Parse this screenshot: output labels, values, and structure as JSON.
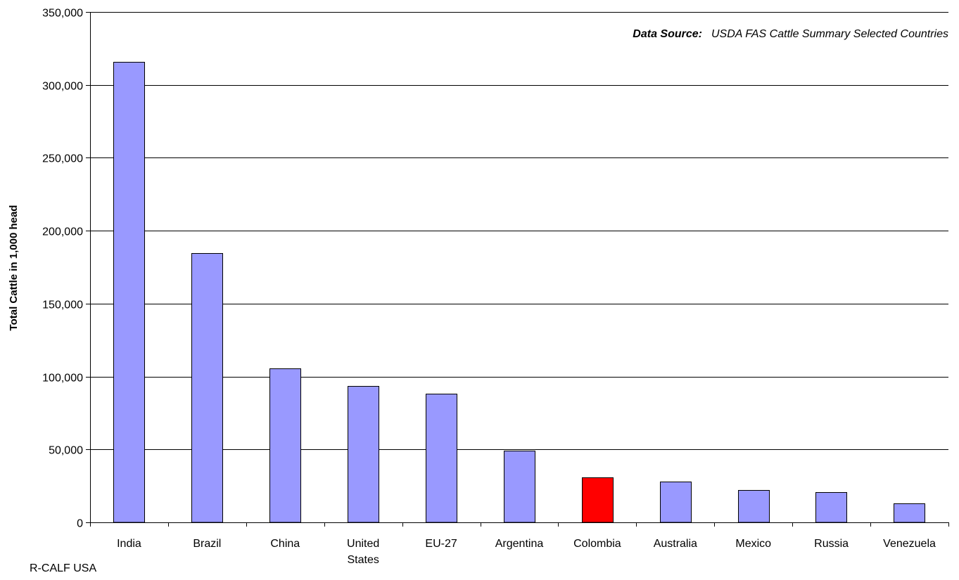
{
  "chart_data": {
    "type": "bar",
    "title": "",
    "annotation_label": "Data Source:",
    "annotation_text": "USDA FAS Cattle Summary Selected Countries",
    "xlabel": "",
    "ylabel": "Total Cattle in 1,000 head",
    "ylim": [
      0,
      350000
    ],
    "yticks": [
      0,
      50000,
      100000,
      150000,
      200000,
      250000,
      300000,
      350000
    ],
    "ytick_labels": [
      "0",
      "50,000",
      "100,000",
      "150,000",
      "200,000",
      "250,000",
      "300,000",
      "350,000"
    ],
    "grid": true,
    "categories": [
      [
        "India"
      ],
      [
        "Brazil"
      ],
      [
        "China"
      ],
      [
        "United",
        "States"
      ],
      [
        "EU-27"
      ],
      [
        "Argentina"
      ],
      [
        "Colombia"
      ],
      [
        "Australia"
      ],
      [
        "Mexico"
      ],
      [
        "Russia"
      ],
      [
        "Venezuela"
      ]
    ],
    "values": [
      316000,
      184500,
      105500,
      93500,
      88000,
      49000,
      31000,
      28000,
      22000,
      20500,
      13000
    ],
    "colors": {
      "default": "#9999ff",
      "highlight": "#ff0000",
      "highlight_index": 6,
      "outline": "#000000",
      "grid": "#000000"
    }
  },
  "footer": {
    "credit": "R-CALF USA"
  }
}
